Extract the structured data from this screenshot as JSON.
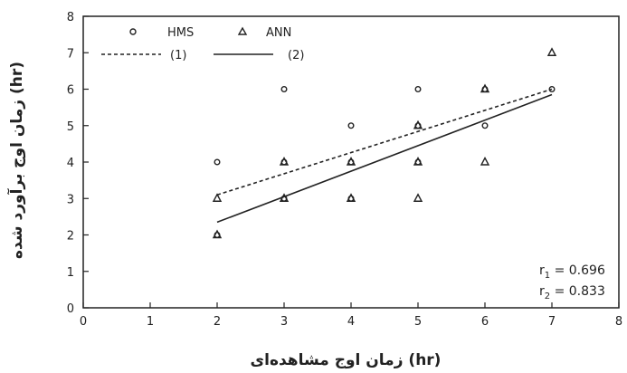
{
  "chart_data": {
    "type": "scatter",
    "xlabel": "زمان اوج مشاهده‌ای (hr)",
    "ylabel": "زمان اوج برآورد شده (hr)",
    "xlim": [
      0,
      8
    ],
    "ylim": [
      0,
      8
    ],
    "xticks": [
      "0",
      "1",
      "2",
      "3",
      "4",
      "5",
      "6",
      "7",
      "8"
    ],
    "yticks": [
      "0",
      "1",
      "2",
      "3",
      "4",
      "5",
      "6",
      "7",
      "8"
    ],
    "grid": false,
    "legend_position": "top-left",
    "series": [
      {
        "name": "HMS",
        "marker": "circle",
        "points": [
          [
            2,
            4
          ],
          [
            2,
            2
          ],
          [
            3,
            6
          ],
          [
            3,
            4
          ],
          [
            3,
            3
          ],
          [
            4,
            5
          ],
          [
            4,
            4
          ],
          [
            4,
            3
          ],
          [
            5,
            6
          ],
          [
            5,
            5
          ],
          [
            5,
            4
          ],
          [
            6,
            6
          ],
          [
            6,
            5
          ],
          [
            7,
            6
          ]
        ]
      },
      {
        "name": "ANN",
        "marker": "triangle",
        "points": [
          [
            2,
            3
          ],
          [
            2,
            2
          ],
          [
            3,
            4
          ],
          [
            3,
            3
          ],
          [
            4,
            4
          ],
          [
            4,
            3
          ],
          [
            5,
            5
          ],
          [
            5,
            4
          ],
          [
            5,
            3
          ],
          [
            6,
            6
          ],
          [
            6,
            4
          ],
          [
            7,
            7
          ]
        ]
      }
    ],
    "lines": [
      {
        "name": "(1)",
        "style": "dashed",
        "x": [
          2,
          7
        ],
        "y": [
          3.1,
          6.0
        ]
      },
      {
        "name": "(2)",
        "style": "solid",
        "x": [
          2,
          7
        ],
        "y": [
          2.35,
          5.85
        ]
      }
    ],
    "annotations": {
      "r1": "= 0.696",
      "r2": "= 0.833"
    }
  }
}
